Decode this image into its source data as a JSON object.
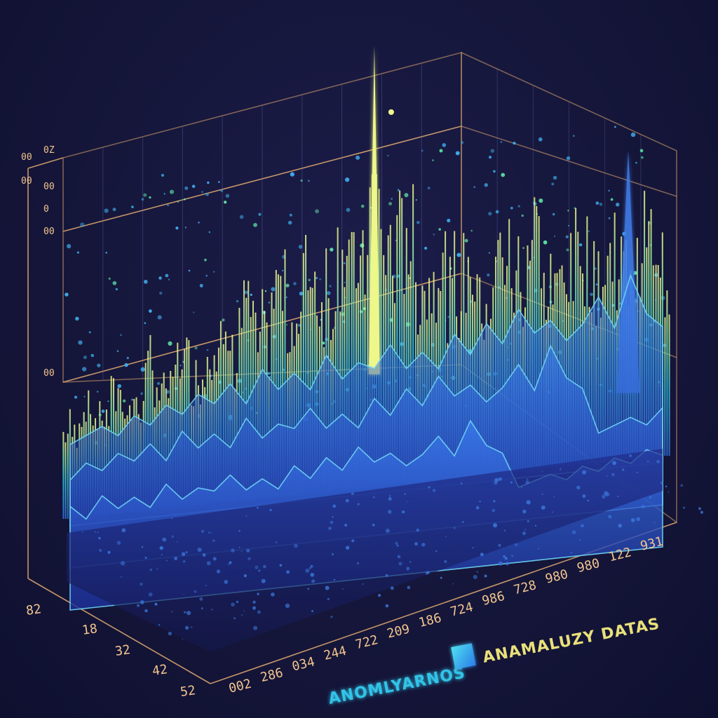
{
  "chart_data": {
    "type": "area",
    "style": "3d-perspective",
    "grid": true,
    "legend_placement": "bottom-right",
    "x_ticks_front": [
      "82",
      "18",
      "32",
      "42",
      "52"
    ],
    "x_ticks_bottom": [
      "002",
      "286",
      "034",
      "244",
      "722",
      "209",
      "186",
      "724",
      "986",
      "728",
      "980",
      "980",
      "122",
      "931"
    ],
    "y_ticks": [
      "00",
      "0Z",
      "00",
      "00",
      "0",
      "00",
      "00"
    ],
    "legend": [
      {
        "label": "ANOMLYARNOS",
        "color": "#33c4e8"
      },
      {
        "label": "ANAMALUZY DATAS",
        "color": "#e9e07a"
      }
    ],
    "colors": {
      "grid": "#d9a46e",
      "peak": "#e8f58a",
      "mid": "#4fe0c0",
      "low": "#2f6fe0",
      "dots": "#3fa9e8"
    },
    "series": [
      {
        "values": [
          22,
          30,
          26,
          34,
          28,
          40,
          33,
          45,
          38,
          52,
          44,
          60,
          48,
          66,
          55,
          72,
          62,
          80,
          70,
          98,
          75,
          82,
          62,
          70,
          58,
          66,
          52,
          72,
          60,
          78,
          55,
          62,
          70,
          58,
          66,
          60,
          72,
          55
        ]
      },
      {
        "values": [
          10,
          14,
          18,
          12,
          22,
          16,
          26,
          20,
          30,
          24,
          34,
          22,
          40,
          28,
          36,
          26,
          44,
          30,
          38,
          34,
          46,
          32,
          40,
          30,
          48,
          36,
          52,
          40,
          58,
          44,
          50,
          38,
          46,
          60,
          42,
          70,
          48,
          40
        ]
      }
    ]
  }
}
